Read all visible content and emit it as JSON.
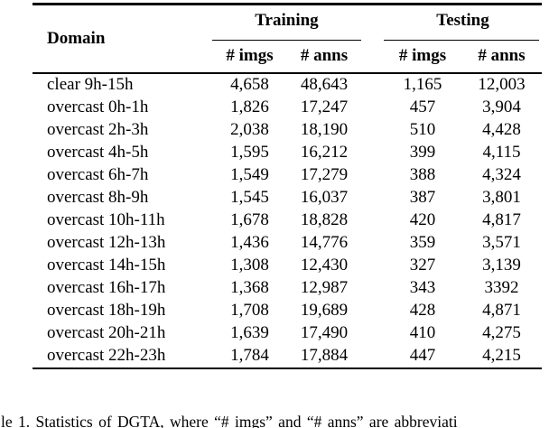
{
  "colors": {
    "text": "#000000",
    "rule": "#000000",
    "background": "#ffffff"
  },
  "table": {
    "header": {
      "domain_label": "Domain",
      "group_training": "Training",
      "group_testing": "Testing",
      "sub_train_imgs": "# imgs",
      "sub_train_anns": "# anns",
      "sub_test_imgs": "# imgs",
      "sub_test_anns": "# anns"
    },
    "rows": [
      {
        "domain": "clear 9h-15h",
        "train_imgs": "4,658",
        "train_anns": "48,643",
        "test_imgs": "1,165",
        "test_anns": "12,003"
      },
      {
        "domain": "overcast 0h-1h",
        "train_imgs": "1,826",
        "train_anns": "17,247",
        "test_imgs": "457",
        "test_anns": "3,904"
      },
      {
        "domain": "overcast 2h-3h",
        "train_imgs": "2,038",
        "train_anns": "18,190",
        "test_imgs": "510",
        "test_anns": "4,428"
      },
      {
        "domain": "overcast 4h-5h",
        "train_imgs": "1,595",
        "train_anns": "16,212",
        "test_imgs": "399",
        "test_anns": "4,115"
      },
      {
        "domain": "overcast 6h-7h",
        "train_imgs": "1,549",
        "train_anns": "17,279",
        "test_imgs": "388",
        "test_anns": "4,324"
      },
      {
        "domain": "overcast 8h-9h",
        "train_imgs": "1,545",
        "train_anns": "16,037",
        "test_imgs": "387",
        "test_anns": "3,801"
      },
      {
        "domain": "overcast 10h-11h",
        "train_imgs": "1,678",
        "train_anns": "18,828",
        "test_imgs": "420",
        "test_anns": "4,817"
      },
      {
        "domain": "overcast 12h-13h",
        "train_imgs": "1,436",
        "train_anns": "14,776",
        "test_imgs": "359",
        "test_anns": "3,571"
      },
      {
        "domain": "overcast 14h-15h",
        "train_imgs": "1,308",
        "train_anns": "12,430",
        "test_imgs": "327",
        "test_anns": "3,139"
      },
      {
        "domain": "overcast 16h-17h",
        "train_imgs": "1,368",
        "train_anns": "12,987",
        "test_imgs": "343",
        "test_anns": "3392"
      },
      {
        "domain": "overcast 18h-19h",
        "train_imgs": "1,708",
        "train_anns": "19,689",
        "test_imgs": "428",
        "test_anns": "4,871"
      },
      {
        "domain": "overcast 20h-21h",
        "train_imgs": "1,639",
        "train_anns": "17,490",
        "test_imgs": "410",
        "test_anns": "4,275"
      },
      {
        "domain": "overcast 22h-23h",
        "train_imgs": "1,784",
        "train_anns": "17,884",
        "test_imgs": "447",
        "test_anns": "4,215"
      }
    ]
  },
  "caption": {
    "text": "le 1. Statistics of DGTA, where “# imgs” and “# anns” are abbreviati"
  }
}
